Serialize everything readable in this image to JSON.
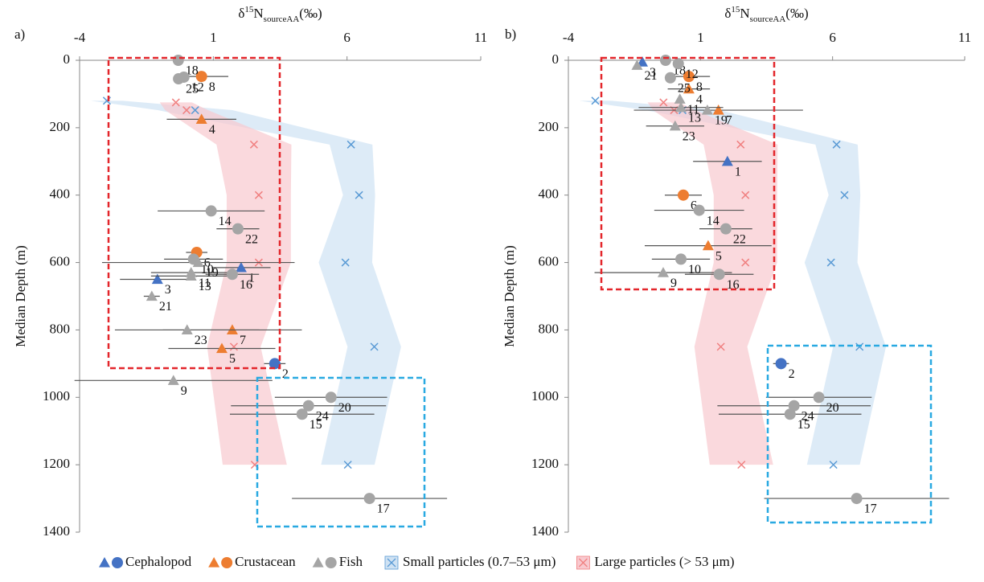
{
  "chart_data": [
    {
      "type": "scatter",
      "panel_label": "a)",
      "x_label": {
        "prefix": "δ",
        "sup": "15",
        "base": "N",
        "sub": "sourceAA",
        "suffix": "(‰)"
      },
      "y_label": "Median Depth (m)",
      "xlim": [
        -4,
        11
      ],
      "xticks": [
        -4,
        1,
        6,
        11
      ],
      "x_axis_position": "top",
      "ylim": [
        0,
        1400
      ],
      "yticks": [
        0,
        200,
        400,
        600,
        800,
        1000,
        1200,
        1400
      ],
      "y_inverted": true,
      "series": [
        {
          "name": "Cephalopod",
          "color": "#4472c4",
          "labels": [
            "3",
            "1",
            "2"
          ],
          "x": [
            -1.09,
            2.04,
            3.3
          ],
          "values": [
            650,
            615,
            900
          ],
          "xerr": [
            1.4,
            1.1,
            0.4
          ],
          "markers": [
            "triangle",
            "triangle",
            "circle"
          ]
        },
        {
          "name": "Crustacean",
          "color": "#ed7d31",
          "labels": [
            "8",
            "4",
            "6",
            "7",
            "5"
          ],
          "x": [
            0.56,
            0.56,
            0.38,
            1.71,
            1.32
          ],
          "values": [
            48,
            175,
            570,
            800,
            855
          ],
          "xerr": [
            1.0,
            1.3,
            0.4,
            2.6,
            2.0
          ],
          "markers": [
            "circle",
            "triangle",
            "circle",
            "triangle",
            "triangle"
          ]
        },
        {
          "name": "Fish",
          "color": "#a5a5a5",
          "labels": [
            "18",
            "25",
            "12",
            "14",
            "22",
            "10",
            "19",
            "11",
            "13",
            "16",
            "21",
            "23",
            "9",
            "20",
            "24",
            "15",
            "17"
          ],
          "x": [
            -0.31,
            -0.3,
            -0.1,
            0.92,
            1.92,
            0.26,
            0.44,
            0.17,
            0.17,
            1.71,
            -1.3,
            0.02,
            -0.49,
            5.4,
            4.56,
            4.32,
            6.84
          ],
          "values": [
            0,
            55,
            50,
            447,
            500,
            590,
            600,
            630,
            640,
            635,
            700,
            800,
            950,
            1000,
            1025,
            1050,
            1300
          ],
          "xerr": [
            null,
            null,
            null,
            2.0,
            0.8,
            1.1,
            3.6,
            1.5,
            1.5,
            1.0,
            0.3,
            2.7,
            3.7,
            2.1,
            2.9,
            2.7,
            2.9
          ],
          "markers": [
            "circle",
            "circle",
            "circle",
            "circle",
            "circle",
            "circle",
            "triangle",
            "triangle",
            "triangle",
            "circle",
            "triangle",
            "triangle",
            "triangle",
            "circle",
            "circle",
            "circle",
            "circle"
          ]
        },
        {
          "name": "Small particles (0.7–53 μm)",
          "kind": "band",
          "color": "#5b9bd5",
          "fill": "#cfe2f3",
          "x": [
            -2.98,
            0.32,
            6.15,
            6.45,
            5.94,
            7.02,
            6.03
          ],
          "values": [
            120,
            148,
            250,
            400,
            600,
            850,
            1200
          ],
          "sd": [
            0.6,
            1.4,
            0.8,
            0.6,
            1.0,
            1.0,
            1.0
          ]
        },
        {
          "name": "Large particles (> 53 μm)",
          "kind": "band",
          "color": "#f08080",
          "fill": "#f8c9cf",
          "x": [
            -0.4,
            0.0,
            2.52,
            2.7,
            2.7,
            1.77,
            2.55
          ],
          "values": [
            125,
            148,
            250,
            400,
            600,
            850,
            1200
          ],
          "sd": [
            0.6,
            0.8,
            1.4,
            1.2,
            1.2,
            1.0,
            1.2
          ]
        }
      ]
    },
    {
      "type": "scatter",
      "panel_label": "b)",
      "x_label": {
        "prefix": "δ",
        "sup": "15",
        "base": "N",
        "sub": "sourceAA",
        "suffix": "(‰)"
      },
      "y_label": "Median Depth (m)",
      "xlim": [
        -4,
        11
      ],
      "xticks": [
        -4,
        1,
        6,
        11
      ],
      "x_axis_position": "top",
      "ylim": [
        0,
        1400
      ],
      "yticks": [
        0,
        200,
        400,
        600,
        800,
        1000,
        1200,
        1400
      ],
      "y_inverted": true,
      "series": [
        {
          "name": "Cephalopod",
          "color": "#4472c4",
          "labels": [
            "3",
            "1",
            "2"
          ],
          "x": [
            -1.2,
            2.02,
            4.05
          ],
          "values": [
            5,
            300,
            900
          ],
          "xerr": [
            null,
            1.3,
            0.3
          ],
          "markers": [
            "triangle",
            "triangle",
            "circle"
          ]
        },
        {
          "name": "Crustacean",
          "color": "#ed7d31",
          "labels": [
            "8",
            "4",
            "7",
            "6",
            "5"
          ],
          "x": [
            0.56,
            0.56,
            1.68,
            0.35,
            1.29
          ],
          "values": [
            48,
            85,
            148,
            400,
            550
          ],
          "xerr": [
            0.8,
            0.8,
            3.2,
            0.7,
            2.4
          ],
          "markers": [
            "circle",
            "triangle",
            "triangle",
            "circle",
            "triangle"
          ]
        },
        {
          "name": "Fish",
          "color": "#a5a5a5",
          "labels": [
            "21",
            "18",
            "12",
            "25",
            "11",
            "13",
            "19",
            "23",
            "14",
            "22",
            "10",
            "9",
            "16",
            "20",
            "24",
            "15",
            "17"
          ],
          "x": [
            -1.4,
            -0.32,
            0.16,
            -0.14,
            0.22,
            0.26,
            1.26,
            0.04,
            0.95,
            1.96,
            0.26,
            -0.41,
            1.71,
            5.48,
            4.54,
            4.39,
            6.91
          ],
          "values": [
            15,
            0,
            10,
            52,
            115,
            140,
            148,
            195,
            445,
            500,
            590,
            630,
            635,
            1000,
            1025,
            1050,
            1300
          ],
          "xerr": [
            null,
            null,
            null,
            null,
            null,
            1.6,
            null,
            1.1,
            1.7,
            1.0,
            1.1,
            2.6,
            1.3,
            2.0,
            2.9,
            2.7,
            3.5
          ],
          "markers": [
            "triangle",
            "circle",
            "circle",
            "circle",
            "triangle",
            "triangle",
            "triangle",
            "triangle",
            "circle",
            "circle",
            "circle",
            "triangle",
            "circle",
            "circle",
            "circle",
            "circle",
            "circle"
          ]
        },
        {
          "name": "Small particles (0.7–53 μm)",
          "kind": "band",
          "color": "#5b9bd5",
          "fill": "#cfe2f3",
          "x": [
            -2.98,
            0.32,
            6.15,
            6.45,
            5.94,
            7.02,
            6.03
          ],
          "values": [
            120,
            148,
            250,
            400,
            600,
            850,
            1200
          ],
          "sd": [
            0.6,
            1.4,
            0.8,
            0.6,
            1.0,
            1.0,
            1.0
          ]
        },
        {
          "name": "Large particles (> 53 μm)",
          "kind": "band",
          "color": "#f08080",
          "fill": "#f8c9cf",
          "x": [
            -0.4,
            0.0,
            2.52,
            2.7,
            2.7,
            1.77,
            2.55
          ],
          "values": [
            125,
            148,
            250,
            400,
            600,
            850,
            1200
          ],
          "sd": [
            0.6,
            0.8,
            1.4,
            1.2,
            1.2,
            1.0,
            1.2
          ]
        }
      ]
    }
  ]
}
